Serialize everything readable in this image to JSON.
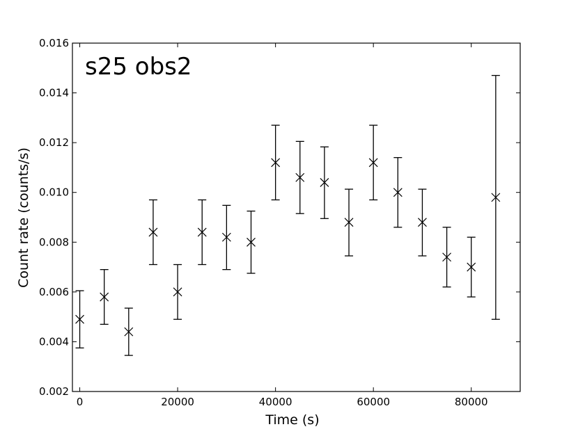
{
  "chart_data": {
    "type": "scatter",
    "title": "",
    "annotation": "s25 obs2",
    "xlabel": "Time (s)",
    "ylabel": "Count rate (counts/s)",
    "xlim": [
      -1500,
      90000
    ],
    "ylim": [
      0.002,
      0.016
    ],
    "xticks": [
      0,
      20000,
      40000,
      60000,
      80000
    ],
    "xtick_labels": [
      "0",
      "20000",
      "40000",
      "60000",
      "80000"
    ],
    "yticks": [
      0.002,
      0.004,
      0.006,
      0.008,
      0.01,
      0.012,
      0.014,
      0.016
    ],
    "ytick_labels": [
      "0.002",
      "0.004",
      "0.006",
      "0.008",
      "0.010",
      "0.012",
      "0.014",
      "0.016"
    ],
    "grid": false,
    "marker": "x",
    "color": "#000000",
    "series": [
      {
        "x": [
          0,
          5000,
          10000,
          15000,
          20000,
          25000,
          30000,
          35000,
          40000,
          45000,
          50000,
          55000,
          60000,
          65000,
          70000,
          75000,
          80000,
          85000
        ],
        "y": [
          0.0049,
          0.0058,
          0.0044,
          0.0084,
          0.006,
          0.0084,
          0.0082,
          0.008,
          0.0112,
          0.0106,
          0.0104,
          0.0088,
          0.0112,
          0.01,
          0.0088,
          0.0074,
          0.007,
          0.0098
        ],
        "y_low": [
          0.00375,
          0.0047,
          0.00345,
          0.0071,
          0.0049,
          0.0071,
          0.0069,
          0.00675,
          0.0097,
          0.00915,
          0.00895,
          0.00745,
          0.0097,
          0.0086,
          0.00745,
          0.0062,
          0.0058,
          0.0049
        ],
        "y_high": [
          0.00605,
          0.0069,
          0.00535,
          0.0097,
          0.0071,
          0.0097,
          0.00948,
          0.00925,
          0.0127,
          0.01205,
          0.01183,
          0.01013,
          0.0127,
          0.0114,
          0.01013,
          0.0086,
          0.0082,
          0.0147
        ]
      }
    ]
  }
}
